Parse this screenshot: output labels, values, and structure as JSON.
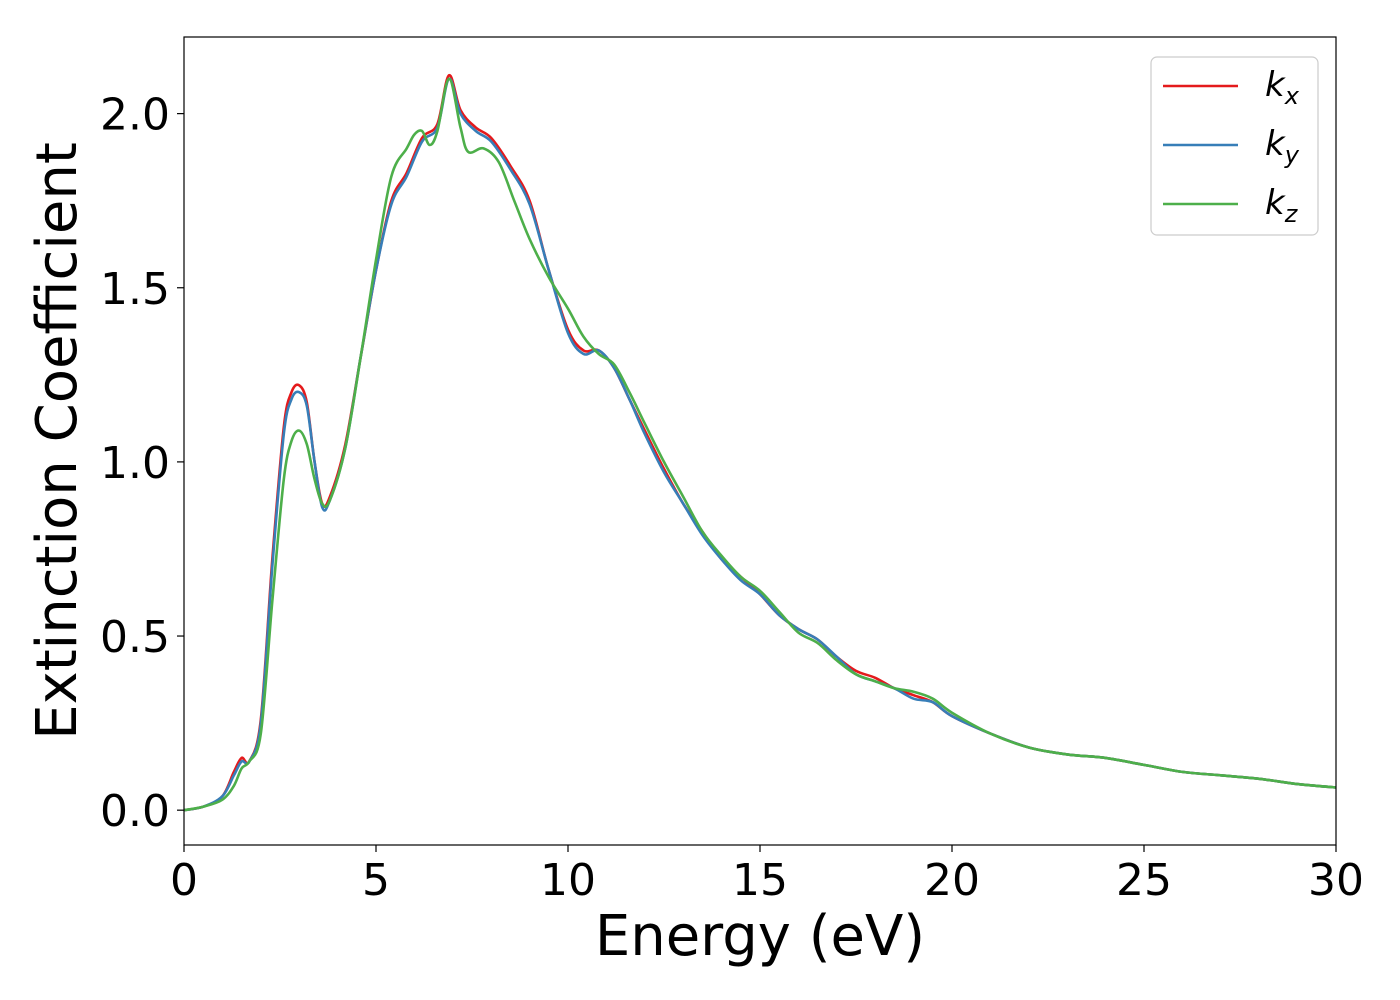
{
  "chart_data": {
    "type": "line",
    "title": "",
    "xlabel": "Energy (eV)",
    "ylabel": "Extinction Coefficient",
    "xlim": [
      0,
      30
    ],
    "ylim": [
      -0.1,
      2.22
    ],
    "xticks": [
      0,
      5,
      10,
      15,
      20,
      25,
      30
    ],
    "yticks": [
      0.0,
      0.5,
      1.0,
      1.5,
      2.0
    ],
    "xtick_labels": [
      "0",
      "5",
      "10",
      "15",
      "20",
      "25",
      "30"
    ],
    "ytick_labels": [
      "0.0",
      "0.5",
      "1.0",
      "1.5",
      "2.0"
    ],
    "grid": false,
    "legend_position": "top-right",
    "series": [
      {
        "name": "k_x",
        "color": "#e41a1c",
        "x": [
          0,
          0.5,
          1.0,
          1.3,
          1.5,
          1.7,
          2.0,
          2.3,
          2.6,
          2.8,
          3.0,
          3.2,
          3.4,
          3.6,
          3.8,
          4.2,
          4.6,
          5.0,
          5.4,
          5.8,
          6.2,
          6.6,
          6.9,
          7.2,
          7.6,
          8.0,
          8.5,
          9.0,
          9.5,
          10.0,
          10.4,
          10.8,
          11.2,
          11.6,
          12.0,
          12.5,
          13.0,
          13.5,
          14.0,
          14.5,
          15.0,
          15.5,
          16.0,
          16.5,
          17.0,
          17.5,
          18.0,
          18.5,
          19.0,
          19.5,
          20.0,
          21.0,
          22.0,
          23.0,
          24.0,
          25.0,
          26.0,
          27.0,
          28.0,
          29.0,
          30.0
        ],
        "y": [
          0.0,
          0.01,
          0.04,
          0.11,
          0.15,
          0.14,
          0.26,
          0.72,
          1.1,
          1.2,
          1.22,
          1.17,
          1.0,
          0.88,
          0.9,
          1.05,
          1.3,
          1.55,
          1.75,
          1.83,
          1.93,
          1.97,
          2.11,
          2.01,
          1.96,
          1.93,
          1.85,
          1.75,
          1.55,
          1.38,
          1.32,
          1.32,
          1.27,
          1.18,
          1.09,
          0.98,
          0.88,
          0.8,
          0.72,
          0.67,
          0.62,
          0.56,
          0.52,
          0.49,
          0.44,
          0.4,
          0.38,
          0.35,
          0.33,
          0.31,
          0.27,
          0.22,
          0.18,
          0.16,
          0.15,
          0.13,
          0.11,
          0.1,
          0.09,
          0.075,
          0.065
        ]
      },
      {
        "name": "k_y",
        "color": "#377eb8",
        "x": [
          0,
          0.5,
          1.0,
          1.3,
          1.5,
          1.7,
          2.0,
          2.3,
          2.6,
          2.8,
          3.0,
          3.2,
          3.4,
          3.6,
          3.8,
          4.2,
          4.6,
          5.0,
          5.4,
          5.8,
          6.2,
          6.6,
          6.9,
          7.2,
          7.6,
          8.0,
          8.5,
          9.0,
          9.5,
          10.0,
          10.4,
          10.8,
          11.2,
          11.6,
          12.0,
          12.5,
          13.0,
          13.5,
          14.0,
          14.5,
          15.0,
          15.5,
          16.0,
          16.5,
          17.0,
          17.5,
          18.0,
          18.5,
          19.0,
          19.5,
          20.0,
          21.0,
          22.0,
          23.0,
          24.0,
          25.0,
          26.0,
          27.0,
          28.0,
          29.0,
          30.0
        ],
        "y": [
          0.0,
          0.01,
          0.04,
          0.1,
          0.14,
          0.14,
          0.25,
          0.7,
          1.08,
          1.18,
          1.2,
          1.16,
          1.0,
          0.87,
          0.89,
          1.04,
          1.3,
          1.55,
          1.74,
          1.82,
          1.92,
          1.96,
          2.1,
          2.0,
          1.95,
          1.92,
          1.84,
          1.74,
          1.55,
          1.37,
          1.31,
          1.32,
          1.27,
          1.18,
          1.08,
          0.97,
          0.88,
          0.79,
          0.72,
          0.66,
          0.62,
          0.56,
          0.52,
          0.49,
          0.44,
          0.39,
          0.37,
          0.35,
          0.32,
          0.31,
          0.27,
          0.22,
          0.18,
          0.16,
          0.15,
          0.13,
          0.11,
          0.1,
          0.09,
          0.075,
          0.065
        ]
      },
      {
        "name": "k_z",
        "color": "#4daf4a",
        "x": [
          0,
          0.5,
          1.0,
          1.3,
          1.5,
          1.7,
          2.0,
          2.3,
          2.6,
          2.8,
          3.0,
          3.2,
          3.4,
          3.6,
          3.8,
          4.2,
          4.6,
          5.0,
          5.4,
          5.8,
          6.0,
          6.2,
          6.4,
          6.6,
          6.9,
          7.2,
          7.4,
          7.8,
          8.2,
          8.6,
          9.0,
          9.5,
          10.0,
          10.4,
          10.8,
          11.2,
          11.6,
          12.0,
          12.5,
          13.0,
          13.5,
          14.0,
          14.5,
          15.0,
          15.5,
          16.0,
          16.5,
          17.0,
          17.5,
          18.0,
          18.5,
          19.0,
          19.5,
          20.0,
          21.0,
          22.0,
          23.0,
          24.0,
          25.0,
          26.0,
          27.0,
          28.0,
          29.0,
          30.0
        ],
        "y": [
          0.0,
          0.01,
          0.03,
          0.07,
          0.12,
          0.14,
          0.22,
          0.6,
          0.95,
          1.06,
          1.09,
          1.05,
          0.95,
          0.88,
          0.89,
          1.04,
          1.3,
          1.58,
          1.82,
          1.9,
          1.94,
          1.95,
          1.91,
          1.95,
          2.1,
          1.96,
          1.89,
          1.9,
          1.86,
          1.75,
          1.64,
          1.53,
          1.44,
          1.36,
          1.31,
          1.28,
          1.2,
          1.11,
          1.0,
          0.9,
          0.8,
          0.73,
          0.67,
          0.63,
          0.57,
          0.51,
          0.48,
          0.43,
          0.39,
          0.37,
          0.35,
          0.34,
          0.32,
          0.28,
          0.22,
          0.18,
          0.16,
          0.15,
          0.13,
          0.11,
          0.1,
          0.09,
          0.075,
          0.065
        ]
      }
    ],
    "legend": [
      {
        "base": "k",
        "sub": "x",
        "color": "#e41a1c"
      },
      {
        "base": "k",
        "sub": "y",
        "color": "#377eb8"
      },
      {
        "base": "k",
        "sub": "z",
        "color": "#4daf4a"
      }
    ]
  }
}
